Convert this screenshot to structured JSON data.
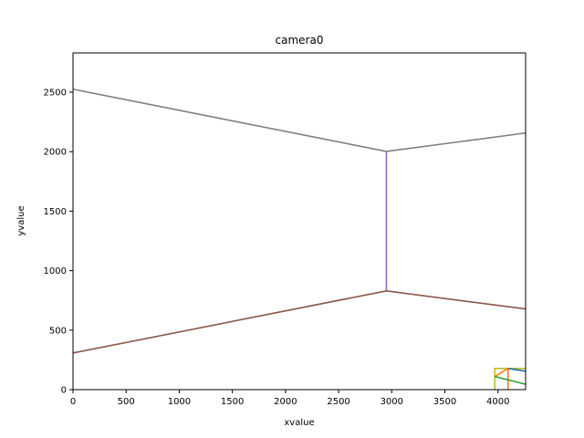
{
  "chart_data": {
    "type": "line",
    "title": "camera0",
    "xlabel": "xvalue",
    "ylabel": "yvalue",
    "xlim": [
      0,
      4260
    ],
    "ylim": [
      0,
      2830
    ],
    "xticks": [
      0,
      500,
      1000,
      1500,
      2000,
      2500,
      3000,
      3500,
      4000
    ],
    "yticks": [
      0,
      500,
      1000,
      1500,
      2000,
      2500
    ],
    "grid": false,
    "series": [
      {
        "color": "#7f7f7f",
        "points": [
          [
            0,
            2525
          ],
          [
            2950,
            2002
          ],
          [
            4260,
            2157
          ]
        ]
      },
      {
        "color": "#9467bd",
        "points": [
          [
            2950,
            2002
          ],
          [
            2950,
            830
          ]
        ]
      },
      {
        "color": "#8c564b",
        "points": [
          [
            0,
            308
          ],
          [
            2950,
            830
          ],
          [
            4260,
            678
          ]
        ]
      },
      {
        "color": "#bcbd22",
        "points": [
          [
            3970,
            0
          ],
          [
            3970,
            178
          ],
          [
            4260,
            178
          ]
        ]
      },
      {
        "color": "#ff7f0e",
        "points": [
          [
            3970,
            110
          ],
          [
            4095,
            178
          ],
          [
            4095,
            0
          ]
        ]
      },
      {
        "color": "#2ca02c",
        "points": [
          [
            3970,
            110
          ],
          [
            4260,
            45
          ]
        ]
      },
      {
        "color": "#1f77b4",
        "points": [
          [
            4095,
            178
          ],
          [
            4260,
            155
          ]
        ]
      }
    ]
  }
}
